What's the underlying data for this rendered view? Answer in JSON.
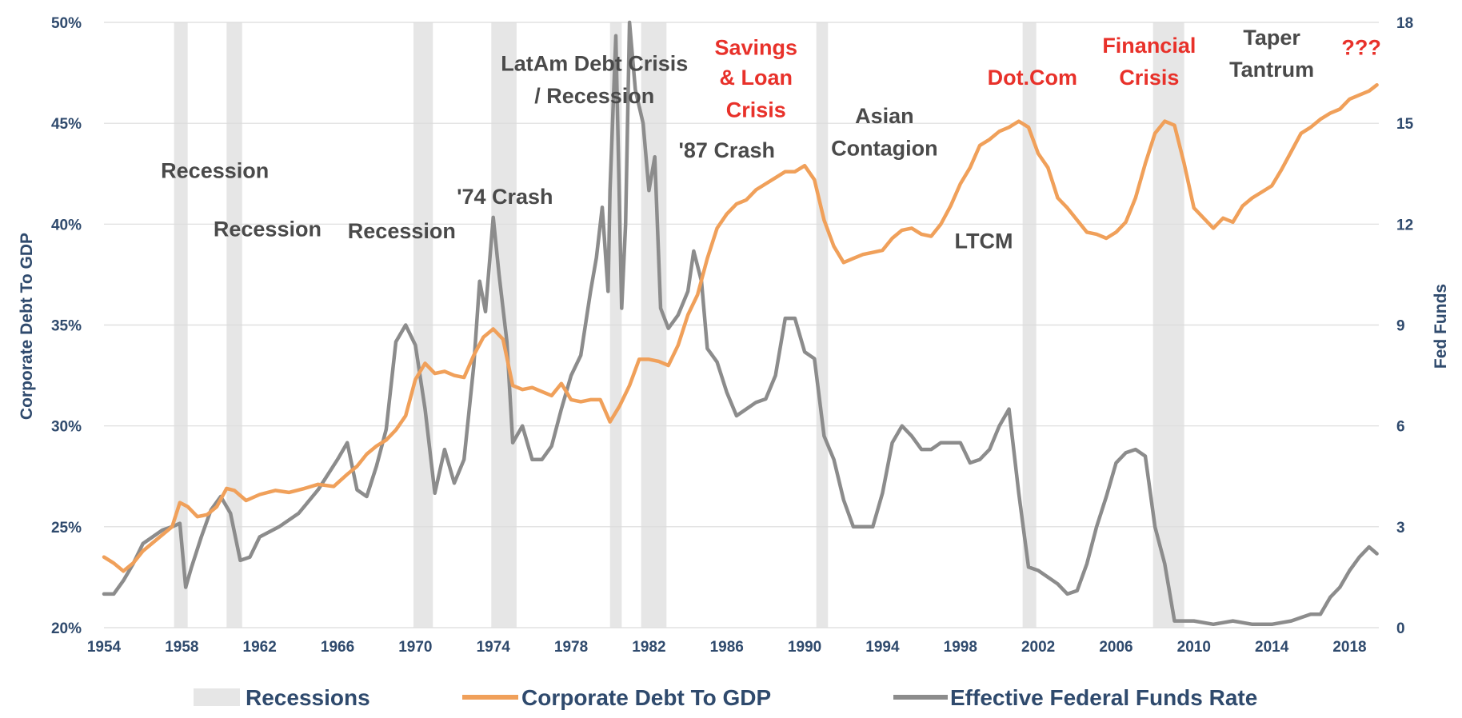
{
  "chart_data": {
    "type": "line",
    "title": "",
    "xlabel": "",
    "ylabel": "Corporate Debt To GDP",
    "ylabel_right": "Fed Funds",
    "xlim": [
      1954,
      2019.5
    ],
    "ylim": [
      20,
      50
    ],
    "ylim_right": [
      0,
      18
    ],
    "grid": true,
    "x_ticks": [
      1954,
      1958,
      1962,
      1966,
      1970,
      1974,
      1978,
      1982,
      1986,
      1990,
      1994,
      1998,
      2002,
      2006,
      2010,
      2014,
      2018
    ],
    "y_ticks": [
      "20%",
      "25%",
      "30%",
      "35%",
      "40%",
      "45%",
      "50%"
    ],
    "y_right_ticks": [
      "0",
      "3",
      "6",
      "9",
      "12",
      "15",
      "18"
    ],
    "legend": {
      "placement": "bottom",
      "entries": [
        "Recessions",
        "Corporate Debt To GDP",
        "Effective Federal Funds Rate"
      ]
    },
    "colors": {
      "recession": "#e6e6e6",
      "debt": "#f0a05a",
      "fedfunds": "#8c8c8c",
      "axis_text": "#2f4a6d",
      "red_annotation": "#e8312a",
      "gray_annotation": "#4a4a4a"
    },
    "recessions": [
      [
        1957.6,
        1958.3
      ],
      [
        1960.3,
        1961.1
      ],
      [
        1969.9,
        1970.9
      ],
      [
        1973.9,
        1975.2
      ],
      [
        1980.0,
        1980.6
      ],
      [
        1981.6,
        1982.9
      ],
      [
        1990.6,
        1991.2
      ],
      [
        2001.2,
        2001.9
      ],
      [
        2007.9,
        2009.5
      ]
    ],
    "series": [
      {
        "name": "Corporate Debt To GDP",
        "axis": "left",
        "x": [
          1954,
          1954.5,
          1955,
          1955.5,
          1956,
          1956.5,
          1957,
          1957.5,
          1957.9,
          1958.3,
          1958.8,
          1959.3,
          1959.8,
          1960.3,
          1960.7,
          1961.3,
          1962,
          1962.8,
          1963.5,
          1964.3,
          1965,
          1965.8,
          1966.5,
          1967,
          1967.5,
          1968,
          1968.5,
          1969,
          1969.5,
          1970,
          1970.5,
          1971,
          1971.5,
          1972,
          1972.5,
          1973,
          1973.5,
          1974,
          1974.5,
          1975,
          1975.5,
          1976,
          1976.5,
          1977,
          1977.5,
          1978,
          1978.5,
          1979,
          1979.5,
          1980,
          1980.5,
          1981,
          1981.5,
          1982,
          1982.5,
          1983,
          1983.5,
          1984,
          1984.5,
          1985,
          1985.5,
          1986,
          1986.5,
          1987,
          1987.5,
          1988,
          1988.5,
          1989,
          1989.5,
          1990,
          1990.5,
          1991,
          1991.5,
          1992,
          1992.5,
          1993,
          1993.5,
          1994,
          1994.5,
          1995,
          1995.5,
          1996,
          1996.5,
          1997,
          1997.5,
          1998,
          1998.5,
          1999,
          1999.5,
          2000,
          2000.5,
          2001,
          2001.5,
          2002,
          2002.5,
          2003,
          2003.5,
          2004,
          2004.5,
          2005,
          2005.5,
          2006,
          2006.5,
          2007,
          2007.5,
          2008,
          2008.5,
          2009,
          2009.5,
          2010,
          2010.5,
          2011,
          2011.5,
          2012,
          2012.5,
          2013,
          2013.5,
          2014,
          2014.5,
          2015,
          2015.5,
          2016,
          2016.5,
          2017,
          2017.5,
          2018,
          2018.5,
          2019,
          2019.4
        ],
        "values": [
          23.5,
          23.2,
          22.8,
          23.2,
          23.8,
          24.2,
          24.6,
          25.0,
          26.2,
          26.0,
          25.5,
          25.6,
          26.0,
          26.9,
          26.8,
          26.3,
          26.6,
          26.8,
          26.7,
          26.9,
          27.1,
          27.0,
          27.6,
          28.0,
          28.6,
          29.0,
          29.3,
          29.8,
          30.5,
          32.3,
          33.1,
          32.6,
          32.7,
          32.5,
          32.4,
          33.5,
          34.4,
          34.8,
          34.3,
          32.0,
          31.8,
          31.9,
          31.7,
          31.5,
          32.1,
          31.3,
          31.2,
          31.3,
          31.3,
          30.2,
          31.0,
          32.0,
          33.3,
          33.3,
          33.2,
          33.0,
          34.0,
          35.5,
          36.5,
          38.3,
          39.8,
          40.5,
          41.0,
          41.2,
          41.7,
          42.0,
          42.3,
          42.6,
          42.6,
          42.9,
          42.2,
          40.2,
          38.9,
          38.1,
          38.3,
          38.5,
          38.6,
          38.7,
          39.3,
          39.7,
          39.8,
          39.5,
          39.4,
          40.0,
          40.9,
          42.0,
          42.8,
          43.9,
          44.2,
          44.6,
          44.8,
          45.1,
          44.8,
          43.5,
          42.8,
          41.3,
          40.8,
          40.2,
          39.6,
          39.5,
          39.3,
          39.6,
          40.1,
          41.3,
          43.0,
          44.5,
          45.1,
          44.9,
          43.0,
          40.8,
          40.3,
          39.8,
          40.3,
          40.1,
          40.9,
          41.3,
          41.6,
          41.9,
          42.7,
          43.6,
          44.5,
          44.8,
          45.2,
          45.5,
          45.7,
          46.2,
          46.4,
          46.6,
          46.9
        ]
      },
      {
        "name": "Effective Federal Funds Rate",
        "axis": "right",
        "x": [
          1954,
          1954.5,
          1955,
          1955.5,
          1956,
          1956.5,
          1957,
          1957.5,
          1957.9,
          1958.2,
          1958.5,
          1959,
          1959.5,
          1960,
          1960.5,
          1961,
          1961.5,
          1962,
          1963,
          1964,
          1965,
          1966,
          1966.5,
          1967,
          1967.5,
          1968,
          1968.5,
          1969,
          1969.5,
          1970,
          1970.5,
          1971,
          1971.5,
          1972,
          1972.5,
          1973,
          1973.3,
          1973.6,
          1974,
          1974.3,
          1974.7,
          1975,
          1975.5,
          1976,
          1976.5,
          1977,
          1977.5,
          1978,
          1978.5,
          1979,
          1979.3,
          1979.6,
          1979.9,
          1980,
          1980.3,
          1980.6,
          1980.8,
          1981,
          1981.3,
          1981.5,
          1981.7,
          1982,
          1982.3,
          1982.6,
          1983,
          1983.5,
          1984,
          1984.3,
          1984.7,
          1985,
          1985.5,
          1986,
          1986.5,
          1987,
          1987.5,
          1988,
          1988.5,
          1989,
          1989.5,
          1990,
          1990.5,
          1991,
          1991.5,
          1992,
          1992.5,
          1993,
          1993.5,
          1994,
          1994.5,
          1995,
          1995.5,
          1996,
          1996.5,
          1997,
          1997.5,
          1998,
          1998.5,
          1999,
          1999.5,
          2000,
          2000.5,
          2001,
          2001.5,
          2002,
          2002.5,
          2003,
          2003.5,
          2004,
          2004.5,
          2005,
          2005.5,
          2006,
          2006.5,
          2007,
          2007.5,
          2008,
          2008.5,
          2009,
          2010,
          2011,
          2012,
          2013,
          2014,
          2015,
          2015.5,
          2016,
          2016.5,
          2017,
          2017.5,
          2018,
          2018.5,
          2019,
          2019.4
        ],
        "values": [
          1.0,
          1.0,
          1.4,
          1.9,
          2.5,
          2.7,
          2.9,
          3.0,
          3.1,
          1.2,
          1.8,
          2.7,
          3.5,
          3.9,
          3.4,
          2.0,
          2.1,
          2.7,
          3.0,
          3.4,
          4.1,
          5.0,
          5.5,
          4.1,
          3.9,
          4.8,
          5.9,
          8.5,
          9.0,
          8.4,
          6.5,
          4.0,
          5.3,
          4.3,
          5.0,
          7.8,
          10.3,
          9.4,
          12.2,
          10.5,
          8.5,
          5.5,
          6.0,
          5.0,
          5.0,
          5.4,
          6.5,
          7.5,
          8.1,
          10.0,
          11.0,
          12.5,
          10.0,
          13.0,
          17.6,
          9.5,
          12.0,
          18.0,
          16.0,
          15.5,
          15.0,
          13.0,
          14.0,
          9.5,
          8.9,
          9.3,
          10.0,
          11.2,
          10.3,
          8.3,
          7.9,
          7.0,
          6.3,
          6.5,
          6.7,
          6.8,
          7.5,
          9.2,
          9.2,
          8.2,
          8.0,
          5.7,
          5.0,
          3.8,
          3.0,
          3.0,
          3.0,
          4.0,
          5.5,
          6.0,
          5.7,
          5.3,
          5.3,
          5.5,
          5.5,
          5.5,
          4.9,
          5.0,
          5.3,
          6.0,
          6.5,
          4.0,
          1.8,
          1.7,
          1.5,
          1.3,
          1.0,
          1.1,
          1.9,
          3.0,
          3.9,
          4.9,
          5.2,
          5.3,
          5.1,
          3.0,
          1.9,
          0.2,
          0.2,
          0.1,
          0.2,
          0.1,
          0.1,
          0.2,
          0.3,
          0.4,
          0.4,
          0.9,
          1.2,
          1.7,
          2.1,
          2.4,
          2.2
        ]
      }
    ],
    "annotations": [
      {
        "text": "Recession",
        "x": 1959.7,
        "y": 42.3,
        "color": "gray"
      },
      {
        "text": "Recession",
        "x": 1962.4,
        "y": 39.4,
        "color": "gray"
      },
      {
        "text": "Recession",
        "x": 1969.3,
        "y": 39.3,
        "color": "gray"
      },
      {
        "text": "'74 Crash",
        "x": 1974.6,
        "y": 41.0,
        "color": "gray"
      },
      {
        "text": "LatAm Debt Crisis",
        "x": 1979.2,
        "y": 47.6,
        "color": "gray"
      },
      {
        "text": "/ Recession",
        "x": 1979.2,
        "y": 46.0,
        "color": "gray"
      },
      {
        "text": "'87 Crash",
        "x": 1986.0,
        "y": 43.3,
        "color": "gray"
      },
      {
        "text": "Savings",
        "x": 1987.5,
        "y": 48.4,
        "color": "red"
      },
      {
        "text": "& Loan",
        "x": 1987.5,
        "y": 46.9,
        "color": "red"
      },
      {
        "text": "Crisis",
        "x": 1987.5,
        "y": 45.3,
        "color": "red"
      },
      {
        "text": "Asian",
        "x": 1994.1,
        "y": 45.0,
        "color": "gray"
      },
      {
        "text": "Contagion",
        "x": 1994.1,
        "y": 43.4,
        "color": "gray"
      },
      {
        "text": "LTCM",
        "x": 1999.2,
        "y": 38.8,
        "color": "gray"
      },
      {
        "text": "Dot.Com",
        "x": 2001.7,
        "y": 46.9,
        "color": "red"
      },
      {
        "text": "Financial",
        "x": 2007.7,
        "y": 48.5,
        "color": "red"
      },
      {
        "text": "Crisis",
        "x": 2007.7,
        "y": 46.9,
        "color": "red"
      },
      {
        "text": "Taper",
        "x": 2014.0,
        "y": 48.9,
        "color": "gray"
      },
      {
        "text": "Tantrum",
        "x": 2014.0,
        "y": 47.3,
        "color": "gray"
      },
      {
        "text": "???",
        "x": 2018.6,
        "y": 48.4,
        "color": "red"
      }
    ]
  }
}
